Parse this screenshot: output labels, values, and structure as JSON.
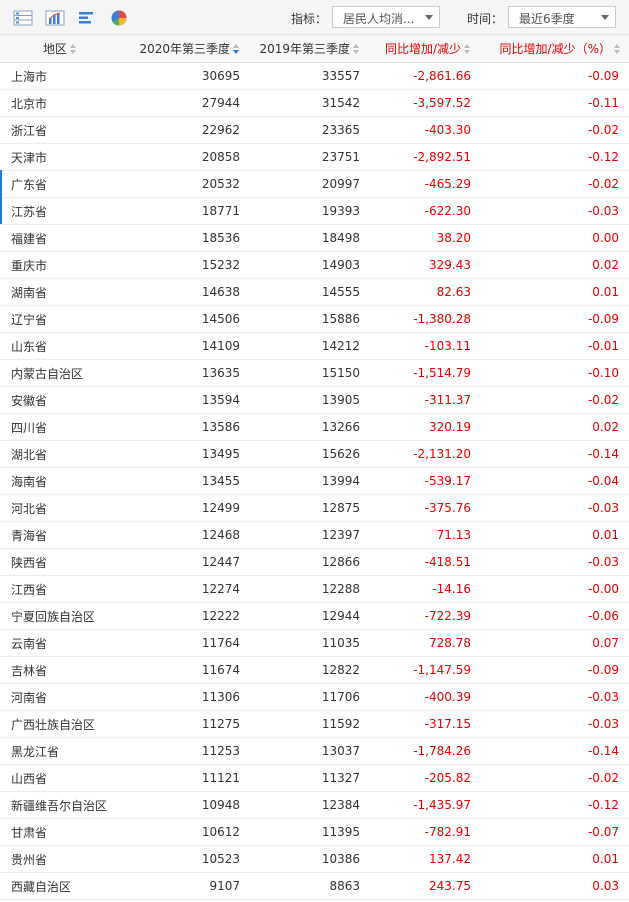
{
  "toolbar": {
    "indicator_label": "指标：",
    "indicator_value": "居民人均消...",
    "time_label": "时间：",
    "time_value": "最近6季度"
  },
  "columns": [
    "地区",
    "2020年第三季度",
    "2019年第三季度",
    "同比增加/减少",
    "同比增加/减少（%）"
  ],
  "rows": [
    [
      "上海市",
      "30695",
      "33557",
      "-2,861.66",
      "-0.09"
    ],
    [
      "北京市",
      "27944",
      "31542",
      "-3,597.52",
      "-0.11"
    ],
    [
      "浙江省",
      "22962",
      "23365",
      "-403.30",
      "-0.02"
    ],
    [
      "天津市",
      "20858",
      "23751",
      "-2,892.51",
      "-0.12"
    ],
    [
      "广东省",
      "20532",
      "20997",
      "-465.29",
      "-0.02"
    ],
    [
      "江苏省",
      "18771",
      "19393",
      "-622.30",
      "-0.03"
    ],
    [
      "福建省",
      "18536",
      "18498",
      "38.20",
      "0.00"
    ],
    [
      "重庆市",
      "15232",
      "14903",
      "329.43",
      "0.02"
    ],
    [
      "湖南省",
      "14638",
      "14555",
      "82.63",
      "0.01"
    ],
    [
      "辽宁省",
      "14506",
      "15886",
      "-1,380.28",
      "-0.09"
    ],
    [
      "山东省",
      "14109",
      "14212",
      "-103.11",
      "-0.01"
    ],
    [
      "内蒙古自治区",
      "13635",
      "15150",
      "-1,514.79",
      "-0.10"
    ],
    [
      "安徽省",
      "13594",
      "13905",
      "-311.37",
      "-0.02"
    ],
    [
      "四川省",
      "13586",
      "13266",
      "320.19",
      "0.02"
    ],
    [
      "湖北省",
      "13495",
      "15626",
      "-2,131.20",
      "-0.14"
    ],
    [
      "海南省",
      "13455",
      "13994",
      "-539.17",
      "-0.04"
    ],
    [
      "河北省",
      "12499",
      "12875",
      "-375.76",
      "-0.03"
    ],
    [
      "青海省",
      "12468",
      "12397",
      "71.13",
      "0.01"
    ],
    [
      "陕西省",
      "12447",
      "12866",
      "-418.51",
      "-0.03"
    ],
    [
      "江西省",
      "12274",
      "12288",
      "-14.16",
      "-0.00"
    ],
    [
      "宁夏回族自治区",
      "12222",
      "12944",
      "-722.39",
      "-0.06"
    ],
    [
      "云南省",
      "11764",
      "11035",
      "728.78",
      "0.07"
    ],
    [
      "吉林省",
      "11674",
      "12822",
      "-1,147.59",
      "-0.09"
    ],
    [
      "河南省",
      "11306",
      "11706",
      "-400.39",
      "-0.03"
    ],
    [
      "广西壮族自治区",
      "11275",
      "11592",
      "-317.15",
      "-0.03"
    ],
    [
      "黑龙江省",
      "11253",
      "13037",
      "-1,784.26",
      "-0.14"
    ],
    [
      "山西省",
      "11121",
      "11327",
      "-205.82",
      "-0.02"
    ],
    [
      "新疆维吾尔自治区",
      "10948",
      "12384",
      "-1,435.97",
      "-0.12"
    ],
    [
      "甘肃省",
      "10612",
      "11395",
      "-782.91",
      "-0.07"
    ],
    [
      "贵州省",
      "10523",
      "10386",
      "137.42",
      "0.01"
    ],
    [
      "西藏自治区",
      "9107",
      "8863",
      "243.75",
      "0.03"
    ]
  ],
  "accent": "#1e7bd6",
  "red": "#e60000"
}
